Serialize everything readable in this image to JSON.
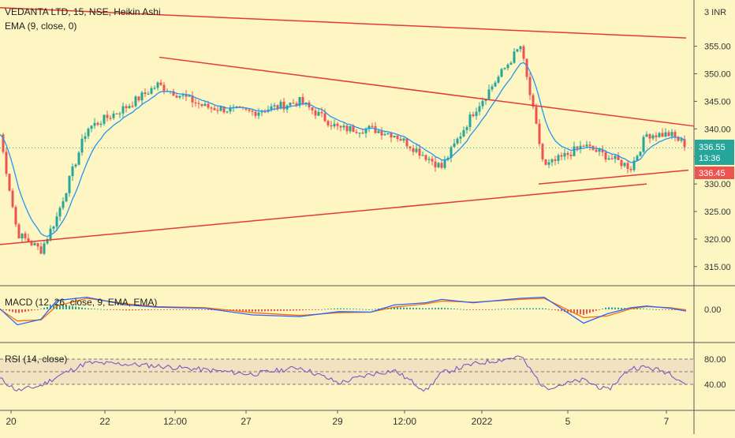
{
  "header": {
    "symbol_line": "VEDANTA LTD, 15, NSE, Heikin Ashi",
    "ema_label": "EMA (9, close, 0)",
    "currency": "INR"
  },
  "price_axis": {
    "ticks": [
      "355.00",
      "350.00",
      "345.00",
      "340.00",
      "335.00",
      "330.00",
      "325.00",
      "320.00",
      "315.00"
    ],
    "ylim": [
      312.5,
      358.5
    ]
  },
  "badges": {
    "last_price": "336.55",
    "countdown": "13:36",
    "ema_value": "336.45"
  },
  "macd": {
    "label": "MACD (12, 26, close, 9, EMA, EMA)",
    "tick": "0.00"
  },
  "rsi": {
    "label": "RSI (14, close)",
    "ticks": [
      "80.00",
      "40.00"
    ]
  },
  "time_axis": {
    "labels": [
      "20",
      "22",
      "12:00",
      "27",
      "29",
      "12:00",
      "2022",
      "5",
      "7"
    ]
  },
  "colors": {
    "background": "#fdf6c3",
    "up_candle": "#26a69a",
    "down_candle": "#ef5350",
    "ema": "#2196f3",
    "trendline": "#e53935",
    "macd_line": "#2962ff",
    "signal_line": "#ff6d00",
    "rsi_line": "#7e57c2"
  },
  "chart_data": {
    "type": "candlestick",
    "style": "Heikin Ashi",
    "interval": "15",
    "exchange": "NSE",
    "price_series": {
      "name": "VEDANTA LTD",
      "x": [
        "20",
        "20",
        "21",
        "21",
        "22",
        "22",
        "12:00",
        "27",
        "27",
        "28",
        "28",
        "29",
        "29",
        "12:00",
        "30",
        "2022",
        "3",
        "3",
        "4",
        "5",
        "6",
        "6",
        "7",
        "7"
      ],
      "close": [
        339,
        321,
        318,
        324,
        340,
        344,
        348,
        344,
        343,
        345,
        340,
        340,
        339,
        335,
        333,
        343,
        355,
        333,
        337,
        335,
        333,
        339,
        339,
        337
      ]
    },
    "ema": {
      "length": 9,
      "source": "close"
    },
    "trendlines": [
      {
        "from": [
          "20",
          362
        ],
        "to": [
          "5",
          356.5
        ]
      },
      {
        "from": [
          "22",
          353
        ],
        "to": [
          "7",
          340.5
        ]
      },
      {
        "from": [
          "20",
          319
        ],
        "to": [
          "5",
          330
        ]
      },
      {
        "from": [
          "3",
          330
        ],
        "to": [
          "7",
          332.5
        ]
      }
    ],
    "macd": {
      "params": "12, 26, close, 9, EMA, EMA",
      "macd": [
        0.1,
        -2.8,
        -1.8,
        1.6,
        2.2,
        0.8,
        0.4,
        0.2,
        -1.0,
        -1.3,
        -0.4,
        -0.5,
        0.8,
        1.2,
        1.8,
        1.2,
        2.0,
        2.2,
        -2.5,
        -0.8,
        0.3,
        0.6,
        0.2,
        -0.3
      ],
      "signal": [
        0,
        -2.1,
        -1.9,
        0.6,
        2.0,
        1.0,
        0.5,
        0.3,
        -0.6,
        -1.1,
        -0.6,
        -0.5,
        0.4,
        1.0,
        1.5,
        1.3,
        1.8,
        2.0,
        -1.5,
        -1.2,
        0.1,
        0.5,
        0.3,
        -0.1
      ]
    },
    "rsi": {
      "length": 14,
      "source": "close",
      "band": [
        40,
        80
      ],
      "values": [
        49,
        30,
        38,
        52,
        74,
        72,
        69,
        63,
        56,
        67,
        42,
        56,
        62,
        30,
        58,
        72,
        84,
        34,
        47,
        30,
        66,
        67,
        58,
        40
      ]
    }
  }
}
